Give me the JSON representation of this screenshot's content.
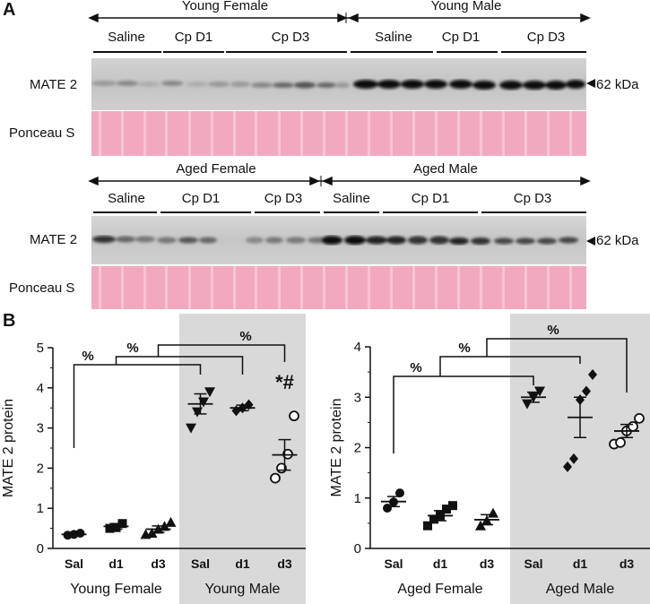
{
  "panel_a": {
    "letter": "A",
    "top_blot": {
      "groups": [
        "Young Female",
        "Young Male"
      ],
      "treatments": [
        "Saline",
        "Cp D1",
        "Cp D3",
        "Saline",
        "Cp D1",
        "Cp D3"
      ],
      "band_label": "MATE 2",
      "loading_label": "Ponceau S",
      "kda": "62 kDa"
    },
    "bottom_blot": {
      "groups": [
        "Aged Female",
        "Aged Male"
      ],
      "treatments": [
        "Saline",
        "Cp D1",
        "Cp D3",
        "Saline",
        "Cp D1",
        "Cp D3"
      ],
      "band_label": "MATE 2",
      "loading_label": "Ponceau S",
      "kda": "62 kDa"
    }
  },
  "panel_b": {
    "letter": "B"
  },
  "chart_data": [
    {
      "type": "scatter",
      "ylabel": "MATE 2 protein",
      "ylim": [
        0,
        5
      ],
      "yticks": [
        "0",
        "1",
        "2",
        "3",
        "4",
        "5"
      ],
      "categories": [
        "Sal",
        "d1",
        "d3",
        "Sal",
        "d1",
        "d3"
      ],
      "group_labels": [
        "Young Female",
        "Young Male"
      ],
      "shaded_group": "Young Male",
      "series": [
        {
          "category": "Sal",
          "marker": "circle-filled",
          "mean": 0.35,
          "sem": 0.03,
          "points": [
            0.33,
            0.35,
            0.38
          ]
        },
        {
          "category": "d1",
          "marker": "square-filled",
          "mean": 0.55,
          "sem": 0.07,
          "points": [
            0.5,
            0.52,
            0.62
          ]
        },
        {
          "category": "d3",
          "marker": "triangle-filled",
          "mean": 0.48,
          "sem": 0.08,
          "points": [
            0.35,
            0.38,
            0.48,
            0.55,
            0.65
          ]
        },
        {
          "category": "Sal",
          "marker": "triangle-down-filled",
          "mean": 3.6,
          "sem": 0.25,
          "points": [
            3.0,
            3.4,
            3.65,
            3.9
          ]
        },
        {
          "category": "d1",
          "marker": "diamond-filled",
          "mean": 3.5,
          "sem": 0.07,
          "points": [
            3.43,
            3.5,
            3.58
          ]
        },
        {
          "category": "d3",
          "marker": "circle-open",
          "mean": 2.33,
          "sem": 0.38,
          "points": [
            1.75,
            2.0,
            2.35,
            3.3
          ]
        }
      ],
      "annotations": [
        "%",
        "%",
        "%",
        "*#"
      ]
    },
    {
      "type": "scatter",
      "ylabel": "MATE 2 protein",
      "ylim": [
        0,
        4
      ],
      "yticks": [
        "0",
        "1",
        "2",
        "3",
        "4"
      ],
      "categories": [
        "Sal",
        "d1",
        "d3",
        "Sal",
        "d1",
        "d3"
      ],
      "group_labels": [
        "Aged Female",
        "Aged Male"
      ],
      "shaded_group": "Aged Male",
      "series": [
        {
          "category": "Sal",
          "marker": "circle-filled",
          "mean": 0.93,
          "sem": 0.1,
          "points": [
            0.8,
            0.92,
            1.1
          ]
        },
        {
          "category": "d1",
          "marker": "square-filled",
          "mean": 0.65,
          "sem": 0.1,
          "points": [
            0.45,
            0.58,
            0.65,
            0.78,
            0.85
          ]
        },
        {
          "category": "d3",
          "marker": "triangle-filled",
          "mean": 0.57,
          "sem": 0.1,
          "points": [
            0.45,
            0.55,
            0.7
          ]
        },
        {
          "category": "Sal",
          "marker": "triangle-down-filled",
          "mean": 3.0,
          "sem": 0.1,
          "points": [
            2.87,
            3.0,
            3.12
          ]
        },
        {
          "category": "d1",
          "marker": "diamond-filled",
          "mean": 2.6,
          "sem": 0.4,
          "points": [
            1.62,
            1.78,
            2.95,
            3.12,
            3.45
          ]
        },
        {
          "category": "d3",
          "marker": "circle-open",
          "mean": 2.33,
          "sem": 0.13,
          "points": [
            2.07,
            2.1,
            2.33,
            2.42,
            2.58
          ]
        }
      ],
      "annotations": [
        "%",
        "%",
        "%"
      ]
    }
  ]
}
